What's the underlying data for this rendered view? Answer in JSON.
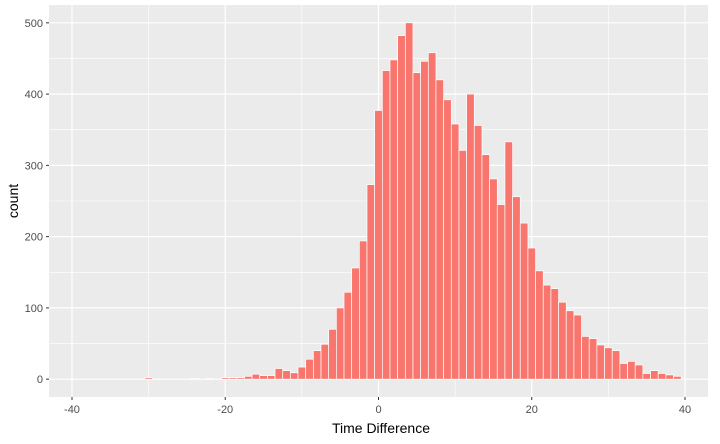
{
  "chart_data": {
    "type": "bar",
    "xlabel": "Time Difference",
    "ylabel": "count",
    "xlim": [
      -43,
      43
    ],
    "ylim": [
      -25,
      525
    ],
    "x_ticks": [
      -40,
      -20,
      0,
      20,
      40
    ],
    "y_ticks": [
      0,
      100,
      200,
      300,
      400,
      500
    ],
    "x_tick_labels": [
      "-40",
      "-20",
      "0",
      "20",
      "40"
    ],
    "y_tick_labels": [
      "0",
      "100",
      "200",
      "300",
      "400",
      "500"
    ],
    "bin_width": 1,
    "x": [
      -30,
      -24,
      -22,
      -20,
      -19,
      -18,
      -17,
      -16,
      -15,
      -14,
      -13,
      -12,
      -11,
      -10,
      -9,
      -8,
      -7,
      -6,
      -5,
      -4,
      -3,
      -2,
      -1,
      0,
      1,
      2,
      3,
      4,
      5,
      6,
      7,
      8,
      9,
      10,
      11,
      12,
      13,
      14,
      15,
      16,
      17,
      18,
      19,
      20,
      21,
      22,
      23,
      24,
      25,
      26,
      27,
      28,
      29,
      30,
      31,
      32,
      33,
      34,
      35,
      36,
      37,
      38,
      39
    ],
    "values": [
      2,
      1,
      1,
      2,
      2,
      2,
      4,
      7,
      5,
      5,
      15,
      12,
      9,
      17,
      28,
      40,
      49,
      70,
      100,
      122,
      156,
      194,
      273,
      377,
      433,
      448,
      482,
      500,
      430,
      446,
      458,
      420,
      392,
      358,
      321,
      400,
      356,
      315,
      281,
      245,
      333,
      256,
      219,
      184,
      152,
      132,
      127,
      108,
      96,
      90,
      60,
      57,
      48,
      44,
      40,
      22,
      25,
      20,
      8,
      12,
      8,
      6,
      4
    ],
    "background": "#ebebeb",
    "gridline_color": "#ffffff",
    "bar_color": "#f8766d",
    "grid": true
  }
}
